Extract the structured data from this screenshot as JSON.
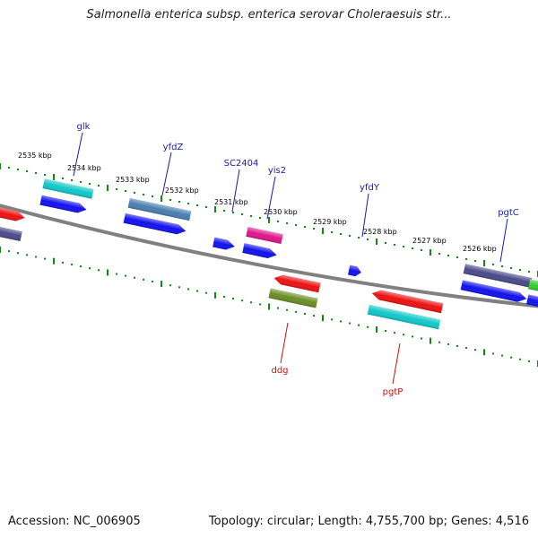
{
  "title": "Salmonella enterica subsp. enterica serovar Choleraesuis str...",
  "footer": {
    "accession": "Accession: NC_006905",
    "stats": "Topology: circular; Length: 4,755,700 bp; Genes: 4,516"
  },
  "colors": {
    "backbone": "#808080",
    "tick": "#118811",
    "label_forward": "#1a1aa6",
    "label_reverse": "#cc1111"
  },
  "kbp_labels": [
    {
      "text": "2535 kbp"
    },
    {
      "text": "2534 kbp"
    },
    {
      "text": "2533 kbp"
    },
    {
      "text": "2532 kbp"
    },
    {
      "text": "2531 kbp"
    },
    {
      "text": "2530 kbp"
    },
    {
      "text": "2529 kbp"
    },
    {
      "text": "2528 kbp"
    },
    {
      "text": "2527 kbp"
    },
    {
      "text": "2526 kbp"
    }
  ],
  "gene_labels": [
    {
      "name": "glk",
      "strand": "forward"
    },
    {
      "name": "yfdZ",
      "strand": "forward"
    },
    {
      "name": "SC2404",
      "strand": "forward"
    },
    {
      "name": "yis2",
      "strand": "forward"
    },
    {
      "name": "yfdY",
      "strand": "forward"
    },
    {
      "name": "pgtC",
      "strand": "forward"
    },
    {
      "name": "ddg",
      "strand": "reverse"
    },
    {
      "name": "pgtP",
      "strand": "reverse"
    }
  ],
  "features": [
    {
      "id": "cog-left-red",
      "color": "#ee1111"
    },
    {
      "id": "cog-left-purple",
      "color": "#4a4a8a"
    },
    {
      "id": "glk-cog",
      "color": "#11c8c8"
    },
    {
      "id": "glk-cds",
      "color": "#1111ee"
    },
    {
      "id": "yfdZ-cog",
      "color": "#4a7fb0"
    },
    {
      "id": "yfdZ-cds",
      "color": "#1111ee"
    },
    {
      "id": "SC2404-cds",
      "color": "#1111ee"
    },
    {
      "id": "yis2-cog",
      "color": "#e0158a"
    },
    {
      "id": "yis2-cds",
      "color": "#1111ee"
    },
    {
      "id": "yfdY-cds",
      "color": "#1111ee"
    },
    {
      "id": "pgtC-cog",
      "color": "#4a4a8a"
    },
    {
      "id": "pgtC-cds",
      "color": "#1111ee"
    },
    {
      "id": "right-green",
      "color": "#33cc33"
    },
    {
      "id": "right-blue",
      "color": "#1111ee"
    },
    {
      "id": "ddg-cds",
      "color": "#ee1111"
    },
    {
      "id": "ddg-cog",
      "color": "#6b8e23"
    },
    {
      "id": "pgtP-cds",
      "color": "#ee1111"
    },
    {
      "id": "pgtP-cog",
      "color": "#11c8c8"
    }
  ]
}
